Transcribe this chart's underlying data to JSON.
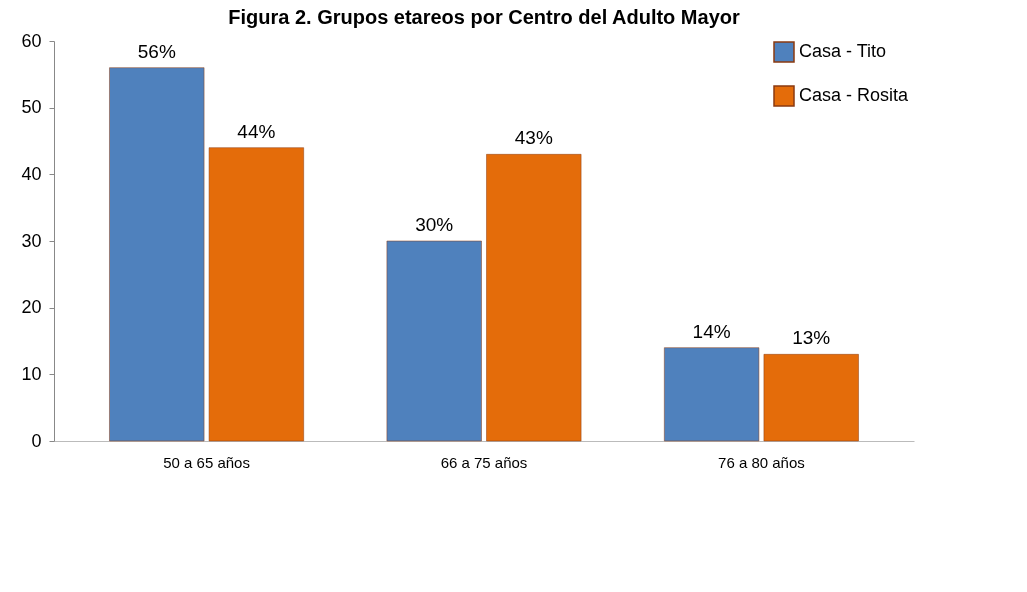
{
  "chart_data": {
    "type": "bar",
    "title": "Figura 2. Grupos etareos por Centro del Adulto Mayor",
    "categories": [
      "50 a 65 años",
      "66 a 75 años",
      "76 a 80 años"
    ],
    "series": [
      {
        "name": "Casa -  Tito",
        "color": "#4f81bd",
        "values": [
          56,
          30,
          14
        ],
        "value_labels": [
          "56%",
          "30%",
          "14%"
        ]
      },
      {
        "name": "Casa -  Rosita",
        "color": "#e46c0a",
        "values": [
          44,
          43,
          13
        ],
        "value_labels": [
          "44%",
          "43%",
          "13%"
        ]
      }
    ],
    "ylim": [
      0,
      60
    ],
    "yticks": [
      0,
      10,
      20,
      30,
      40,
      50,
      60
    ],
    "legend": "top right"
  }
}
